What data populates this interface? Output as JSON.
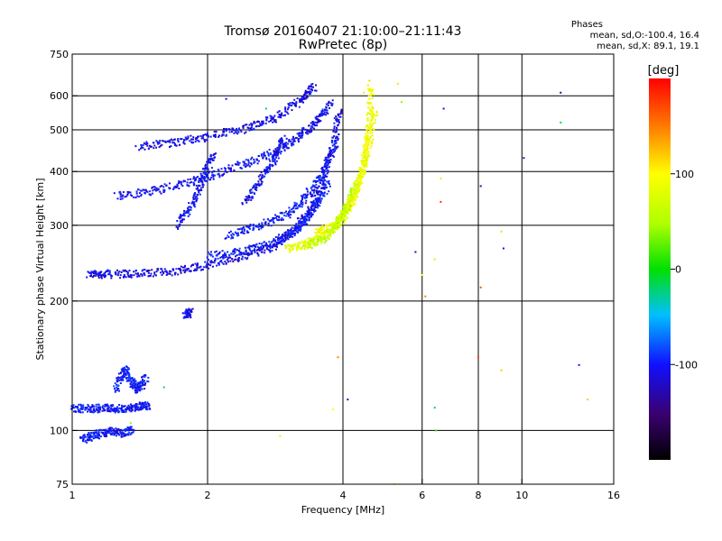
{
  "title_line1": "Tromsø 20160407 21:10:00–21:11:43",
  "title_line2": "RwPretec (8p)",
  "stats": {
    "heading": "Phases",
    "line1": "mean, sd,O:-100.4, 16.4",
    "line2": "mean, sd,X:  89.1, 19.1"
  },
  "colorbar": {
    "label": "[deg]",
    "range": [
      -200,
      200
    ],
    "ticks": [
      {
        "value": 100,
        "label": "100"
      },
      {
        "value": 0,
        "label": "0"
      },
      {
        "value": -100,
        "label": "-100"
      }
    ]
  },
  "chart_data": {
    "type": "scatter",
    "xlabel": "Frequency [MHz]",
    "ylabel": "Stationary phase Virtual Height [km]",
    "x_scale": "log",
    "y_scale": "log",
    "xlim": [
      1,
      16
    ],
    "ylim": [
      75,
      750
    ],
    "xticks": [
      {
        "value": 1,
        "label": "1"
      },
      {
        "value": 2,
        "label": "2"
      },
      {
        "value": 4,
        "label": "4"
      },
      {
        "value": 6,
        "label": "6"
      },
      {
        "value": 8,
        "label": "8"
      },
      {
        "value": 10,
        "label": "10"
      },
      {
        "value": 16,
        "label": "16"
      }
    ],
    "x_gridlines": [
      2,
      4,
      6,
      8,
      10
    ],
    "yticks": [
      {
        "value": 75,
        "label": "75"
      },
      {
        "value": 100,
        "label": "100"
      },
      {
        "value": 200,
        "label": "200"
      },
      {
        "value": 300,
        "label": "300"
      },
      {
        "value": 400,
        "label": "400"
      },
      {
        "value": 500,
        "label": "500"
      },
      {
        "value": 600,
        "label": "600"
      },
      {
        "value": 750,
        "label": "750"
      }
    ],
    "y_gridlines": [
      100,
      200,
      300,
      400,
      500,
      600
    ],
    "grid": true,
    "color_by": "phase_deg",
    "traces": [
      {
        "x": [
          1.08,
          1.2,
          1.4,
          1.7,
          2.0,
          2.4,
          2.8,
          3.1,
          3.4,
          3.6,
          3.8,
          3.9
        ],
        "y": [
          232,
          232,
          232,
          236,
          244,
          255,
          270,
          295,
          330,
          390,
          460,
          560
        ],
        "phase": -110
      },
      {
        "x": [
          1.25,
          1.5,
          1.8,
          2.1,
          2.5,
          2.9,
          3.2,
          3.5,
          3.75
        ],
        "y": [
          352,
          362,
          378,
          398,
          425,
          455,
          488,
          530,
          580
        ],
        "phase": -105
      },
      {
        "x": [
          1.4,
          1.7,
          2.0,
          2.4,
          2.8,
          3.2,
          3.45
        ],
        "y": [
          460,
          470,
          485,
          505,
          535,
          585,
          635
        ],
        "phase": -110
      },
      {
        "x": [
          2.0,
          2.4,
          2.8,
          3.1,
          3.3,
          3.5,
          3.7
        ],
        "y": [
          255,
          262,
          275,
          290,
          310,
          340,
          380
        ],
        "phase": -100
      },
      {
        "x": [
          2.2,
          2.6,
          3.0,
          3.3,
          3.6,
          3.85
        ],
        "y": [
          285,
          300,
          320,
          350,
          400,
          470
        ],
        "phase": -100
      },
      {
        "x": [
          1.7,
          1.85,
          1.95,
          2.05
        ],
        "y": [
          300,
          340,
          390,
          440
        ],
        "phase": -105
      },
      {
        "x": [
          2.4,
          2.6,
          2.8,
          2.95
        ],
        "y": [
          340,
          380,
          430,
          480
        ],
        "phase": -105
      },
      {
        "x": [
          3.0,
          3.3,
          3.6,
          3.9,
          4.1,
          4.3,
          4.45,
          4.55,
          4.6
        ],
        "y": [
          265,
          272,
          285,
          305,
          330,
          370,
          430,
          520,
          640
        ],
        "phase": 88
      },
      {
        "x": [
          3.5,
          3.8,
          4.0,
          4.2,
          4.4,
          4.55,
          4.7
        ],
        "y": [
          290,
          300,
          320,
          350,
          400,
          470,
          560
        ],
        "phase": 92
      },
      {
        "x": [
          3.3,
          3.6,
          3.85,
          4.05,
          4.25
        ],
        "y": [
          270,
          280,
          300,
          330,
          380
        ],
        "phase": 60
      },
      {
        "x": [
          1.0,
          1.1,
          1.2,
          1.3,
          1.4,
          1.48
        ],
        "y": [
          113,
          113,
          113,
          113,
          114,
          115
        ],
        "phase": -100
      },
      {
        "x": [
          1.25,
          1.3,
          1.35,
          1.4,
          1.45
        ],
        "y": [
          125,
          140,
          130,
          125,
          133
        ],
        "phase": -100
      },
      {
        "x": [
          1.05,
          1.12,
          1.2,
          1.28,
          1.36
        ],
        "y": [
          96,
          98,
          100,
          99,
          101
        ],
        "phase": -100
      },
      {
        "x": [
          1.78,
          1.82
        ],
        "y": [
          185,
          190
        ],
        "phase": -105
      }
    ],
    "points": [
      {
        "x": 4.58,
        "y": 650,
        "phase": 120
      },
      {
        "x": 4.45,
        "y": 610,
        "phase": 110
      },
      {
        "x": 5.3,
        "y": 640,
        "phase": 110
      },
      {
        "x": 5.4,
        "y": 580,
        "phase": 40
      },
      {
        "x": 6.7,
        "y": 560,
        "phase": -110
      },
      {
        "x": 6.6,
        "y": 340,
        "phase": 180
      },
      {
        "x": 6.0,
        "y": 230,
        "phase": 100
      },
      {
        "x": 6.1,
        "y": 205,
        "phase": 150
      },
      {
        "x": 6.4,
        "y": 113,
        "phase": -20
      },
      {
        "x": 6.45,
        "y": 100,
        "phase": 20
      },
      {
        "x": 8.1,
        "y": 370,
        "phase": -120
      },
      {
        "x": 8.1,
        "y": 215,
        "phase": 170
      },
      {
        "x": 8.0,
        "y": 148,
        "phase": 175
      },
      {
        "x": 9.0,
        "y": 290,
        "phase": 50
      },
      {
        "x": 9.1,
        "y": 265,
        "phase": -110
      },
      {
        "x": 9.0,
        "y": 138,
        "phase": 120
      },
      {
        "x": 10.1,
        "y": 430,
        "phase": -120
      },
      {
        "x": 12.2,
        "y": 610,
        "phase": -150
      },
      {
        "x": 12.2,
        "y": 520,
        "phase": -10
      },
      {
        "x": 13.4,
        "y": 142,
        "phase": -110
      },
      {
        "x": 14.0,
        "y": 118,
        "phase": 120
      },
      {
        "x": 4.1,
        "y": 118,
        "phase": -110
      },
      {
        "x": 3.8,
        "y": 112,
        "phase": 100
      },
      {
        "x": 3.9,
        "y": 148,
        "phase": 150
      },
      {
        "x": 2.9,
        "y": 97,
        "phase": 110
      },
      {
        "x": 1.6,
        "y": 126,
        "phase": -20
      },
      {
        "x": 1.35,
        "y": 104,
        "phase": 40
      },
      {
        "x": 5.2,
        "y": 75,
        "phase": 100
      },
      {
        "x": 5.8,
        "y": 260,
        "phase": -110
      },
      {
        "x": 6.4,
        "y": 250,
        "phase": 60
      },
      {
        "x": 6.6,
        "y": 385,
        "phase": 110
      },
      {
        "x": 2.2,
        "y": 590,
        "phase": -100
      },
      {
        "x": 2.7,
        "y": 560,
        "phase": -20
      }
    ]
  }
}
